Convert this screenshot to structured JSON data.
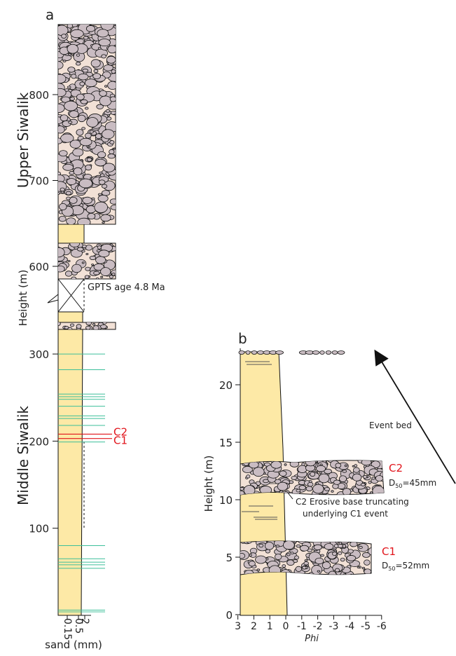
{
  "panel_a": {
    "label": "a",
    "y_label": "Height (m)",
    "upper_unit": "Upper Siwalik",
    "middle_unit": "Middle Siwalik",
    "yticks_lower": [
      100,
      200,
      300
    ],
    "yticks_upper": [
      600,
      700,
      800
    ],
    "gap_note": "GPTS age 4.8 Ma",
    "event_beds": [
      300,
      282,
      254,
      251,
      248,
      240,
      229,
      226,
      218,
      199,
      80,
      65,
      61,
      58,
      54,
      6,
      4
    ],
    "c2": {
      "label": "C2",
      "height": 208
    },
    "c1": {
      "label": "C1",
      "height": 203
    },
    "xticks": [
      0.15,
      0.5,
      2
    ],
    "x_label": "sand (mm)"
  },
  "panel_b": {
    "label": "b",
    "y_label": "Height (m)",
    "yticks": [
      0,
      5,
      10,
      15,
      20
    ],
    "xticks": [
      3,
      2,
      1,
      0,
      -1,
      -2,
      -3,
      -4,
      -5,
      -6
    ],
    "x_label": "Phi",
    "event_label": "Event bed",
    "c2": {
      "label": "C2",
      "d": "D",
      "sub": "50",
      "size": "=45mm"
    },
    "note": [
      "C2 Erosive base truncating",
      "underlying C1 event"
    ],
    "c1": {
      "label": "C1",
      "d": "D",
      "sub": "50",
      "size": "=52mm"
    }
  }
}
